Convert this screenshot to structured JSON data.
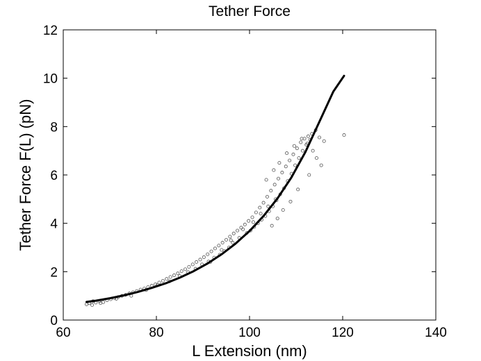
{
  "chart_data": {
    "type": "scatter",
    "title": "Tether Force",
    "xlabel": "L Extension (nm)",
    "ylabel": "Tether Force F(L) (pN)",
    "xlim": [
      60,
      140
    ],
    "ylim": [
      0,
      12
    ],
    "xticks": [
      60,
      80,
      100,
      120,
      140
    ],
    "yticks": [
      0,
      2,
      4,
      6,
      8,
      10,
      12
    ],
    "grid": false,
    "legend": "none",
    "colors": {
      "points": "#555555",
      "fit_line": "#000000",
      "axes": "#000000"
    },
    "series": [
      {
        "kind": "points",
        "x": [
          65.0,
          65.6,
          66.2,
          67.0,
          67.8,
          68.6,
          69.4,
          70.2,
          71.0,
          71.8,
          72.6,
          73.4,
          74.2,
          75.0,
          75.8,
          76.6,
          77.4,
          78.2,
          79.0,
          79.8,
          80.6,
          81.4,
          82.2,
          83.0,
          83.8,
          84.6,
          85.4,
          86.2,
          87.0,
          87.8,
          88.6,
          89.4,
          90.2,
          91.0,
          91.8,
          92.6,
          93.4,
          94.2,
          95.0,
          95.8,
          96.6,
          97.4,
          98.2,
          99.0,
          99.8,
          100.6,
          101.4,
          102.2,
          103.0,
          103.8,
          104.6,
          105.4,
          106.2,
          107.0,
          107.8,
          108.6,
          109.4,
          110.2,
          111.0,
          111.8,
          112.6,
          113.4,
          114.2,
          115.0,
          66.4,
          68.0,
          71.4,
          74.6,
          77.8,
          80.2,
          82.8,
          85.0,
          86.8,
          88.4,
          89.8,
          91.2,
          92.4,
          93.6,
          94.6,
          95.6,
          96.4,
          97.8,
          99.4,
          100.2,
          101.0,
          101.8,
          102.6,
          103.4,
          104.2,
          105.0,
          105.8,
          106.6,
          107.4,
          108.2,
          109.0,
          109.8,
          110.6,
          111.4,
          112.2,
          113.0,
          104.8,
          106.0,
          107.2,
          108.8,
          110.4,
          112.8,
          114.4,
          116.0,
          120.3,
          103.6,
          105.2,
          106.4,
          108.0,
          109.6,
          111.2,
          112.4,
          113.6,
          115.4,
          91.6,
          94.0,
          96.0,
          98.6,
          100.8,
          102.4,
          104.0,
          105.6
        ],
        "y": [
          0.65,
          0.7,
          0.62,
          0.72,
          0.78,
          0.74,
          0.82,
          0.86,
          0.9,
          0.95,
          1.0,
          1.04,
          1.1,
          1.15,
          1.2,
          1.26,
          1.3,
          1.36,
          1.42,
          1.48,
          1.55,
          1.62,
          1.7,
          1.78,
          1.85,
          1.93,
          2.02,
          2.1,
          2.2,
          2.3,
          2.4,
          2.5,
          2.6,
          2.72,
          2.84,
          2.96,
          3.08,
          3.2,
          3.32,
          3.45,
          3.58,
          3.7,
          3.82,
          3.95,
          4.1,
          4.25,
          4.45,
          4.65,
          4.85,
          5.1,
          5.35,
          5.6,
          5.85,
          6.1,
          6.35,
          6.6,
          6.85,
          7.1,
          7.35,
          7.5,
          7.6,
          7.7,
          7.85,
          7.55,
          0.78,
          0.7,
          0.88,
          1.0,
          1.24,
          1.45,
          1.6,
          1.82,
          1.98,
          2.12,
          2.3,
          2.42,
          2.58,
          2.7,
          2.85,
          3.0,
          3.2,
          3.4,
          3.6,
          3.7,
          3.85,
          4.0,
          4.15,
          4.3,
          4.5,
          4.7,
          4.95,
          5.2,
          5.45,
          5.75,
          6.05,
          6.4,
          6.7,
          7.0,
          7.25,
          7.45,
          3.9,
          4.2,
          4.55,
          4.9,
          5.4,
          6.0,
          6.7,
          7.4,
          7.65,
          5.8,
          6.2,
          6.5,
          6.9,
          7.2,
          7.5,
          7.3,
          7.0,
          6.4,
          2.4,
          2.9,
          3.3,
          3.75,
          4.05,
          4.4,
          4.7,
          5.0
        ]
      },
      {
        "kind": "fit_line",
        "x": [
          65,
          67,
          70,
          73,
          76,
          79,
          82,
          85,
          88,
          91,
          94,
          97,
          100,
          103,
          106,
          109,
          112,
          115,
          118,
          120.3
        ],
        "y": [
          0.75,
          0.8,
          0.9,
          1.02,
          1.16,
          1.33,
          1.52,
          1.75,
          2.02,
          2.34,
          2.72,
          3.16,
          3.68,
          4.3,
          5.03,
          5.9,
          6.95,
          8.2,
          9.45,
          10.1
        ]
      }
    ]
  }
}
